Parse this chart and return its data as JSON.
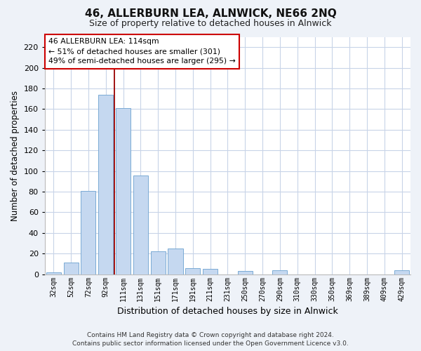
{
  "title": "46, ALLERBURN LEA, ALNWICK, NE66 2NQ",
  "subtitle": "Size of property relative to detached houses in Alnwick",
  "xlabel": "Distribution of detached houses by size in Alnwick",
  "ylabel": "Number of detached properties",
  "bar_color": "#c5d8f0",
  "bar_edge_color": "#7aaad4",
  "categories": [
    "32sqm",
    "52sqm",
    "72sqm",
    "92sqm",
    "111sqm",
    "131sqm",
    "151sqm",
    "171sqm",
    "191sqm",
    "211sqm",
    "231sqm",
    "250sqm",
    "270sqm",
    "290sqm",
    "310sqm",
    "330sqm",
    "350sqm",
    "369sqm",
    "389sqm",
    "409sqm",
    "429sqm"
  ],
  "values": [
    2,
    11,
    81,
    174,
    161,
    96,
    22,
    25,
    6,
    5,
    0,
    3,
    0,
    4,
    0,
    0,
    0,
    0,
    0,
    0,
    4
  ],
  "reference_line_color": "#990000",
  "ylim": [
    0,
    230
  ],
  "yticks": [
    0,
    20,
    40,
    60,
    80,
    100,
    120,
    140,
    160,
    180,
    200,
    220
  ],
  "annotation_title": "46 ALLERBURN LEA: 114sqm",
  "annotation_line1": "← 51% of detached houses are smaller (301)",
  "annotation_line2": "49% of semi-detached houses are larger (295) →",
  "footer_line1": "Contains HM Land Registry data © Crown copyright and database right 2024.",
  "footer_line2": "Contains public sector information licensed under the Open Government Licence v3.0.",
  "background_color": "#eef2f8",
  "plot_bg_color": "#ffffff",
  "grid_color": "#c8d4e8"
}
